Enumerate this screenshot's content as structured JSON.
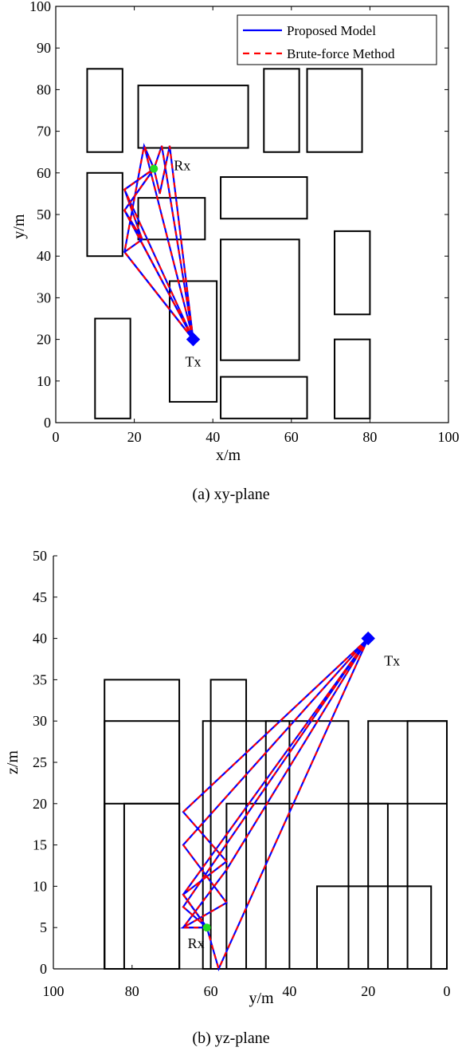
{
  "chart_data": [
    {
      "type": "line",
      "caption": "(a) xy-plane",
      "xlabel": "x/m",
      "ylabel": "y/m",
      "xlim": [
        0,
        100
      ],
      "ylim": [
        0,
        100
      ],
      "xticks": [
        0,
        20,
        40,
        60,
        80,
        100
      ],
      "yticks": [
        0,
        10,
        20,
        30,
        40,
        50,
        60,
        70,
        80,
        90,
        100
      ],
      "legend": {
        "position": "top-right",
        "entries": [
          {
            "label": "Proposed Model",
            "color": "#0000ff",
            "style": "solid"
          },
          {
            "label": "Brute-force Method",
            "color": "#ff0000",
            "style": "dashed"
          }
        ]
      },
      "buildings": [
        {
          "x": [
            8,
            17
          ],
          "y": [
            65,
            85
          ]
        },
        {
          "x": [
            21,
            49
          ],
          "y": [
            66,
            81
          ]
        },
        {
          "x": [
            53,
            62
          ],
          "y": [
            65,
            85
          ]
        },
        {
          "x": [
            64,
            78
          ],
          "y": [
            65,
            85
          ]
        },
        {
          "x": [
            8,
            17
          ],
          "y": [
            40,
            60
          ]
        },
        {
          "x": [
            21,
            38
          ],
          "y": [
            44,
            54
          ]
        },
        {
          "x": [
            42,
            64
          ],
          "y": [
            49,
            59
          ]
        },
        {
          "x": [
            42,
            62
          ],
          "y": [
            15,
            44
          ]
        },
        {
          "x": [
            71,
            80
          ],
          "y": [
            26,
            46
          ]
        },
        {
          "x": [
            29,
            41
          ],
          "y": [
            5,
            34
          ]
        },
        {
          "x": [
            10,
            19
          ],
          "y": [
            1,
            25
          ]
        },
        {
          "x": [
            71,
            80
          ],
          "y": [
            1,
            20
          ]
        },
        {
          "x": [
            42,
            64
          ],
          "y": [
            1,
            11
          ]
        }
      ],
      "tx": {
        "label": "Tx",
        "x": 35,
        "y": 20
      },
      "rx": {
        "label": "Rx",
        "x": 25,
        "y": 61
      },
      "paths": [
        [
          [
            35,
            20
          ],
          [
            22.5,
            66.5
          ],
          [
            25,
            61
          ]
        ],
        [
          [
            35,
            20
          ],
          [
            29,
            66.5
          ],
          [
            26.5,
            55
          ],
          [
            25,
            61
          ]
        ],
        [
          [
            35,
            20
          ],
          [
            27,
            66.5
          ],
          [
            25,
            61
          ]
        ],
        [
          [
            35,
            20
          ],
          [
            17.5,
            41
          ],
          [
            22.5,
            66.5
          ],
          [
            25,
            61
          ]
        ],
        [
          [
            35,
            20
          ],
          [
            17.5,
            51
          ],
          [
            22,
            44
          ],
          [
            17.5,
            56
          ],
          [
            25,
            61
          ]
        ],
        [
          [
            35,
            20
          ],
          [
            17.5,
            56
          ],
          [
            25,
            61
          ]
        ],
        [
          [
            35,
            20
          ],
          [
            17.5,
            41
          ],
          [
            22,
            44
          ],
          [
            17.5,
            51
          ],
          [
            25,
            61
          ]
        ],
        [
          [
            35,
            20
          ],
          [
            17.5,
            51
          ],
          [
            25,
            61
          ]
        ]
      ]
    },
    {
      "type": "line",
      "caption": "(b) yz-plane",
      "xlabel": "y/m",
      "ylabel": "z/m",
      "xlim": [
        100,
        0
      ],
      "ylim": [
        0,
        50
      ],
      "xticks": [
        100,
        80,
        60,
        40,
        20,
        0
      ],
      "yticks": [
        0,
        5,
        10,
        15,
        20,
        25,
        30,
        35,
        40,
        45,
        50
      ],
      "buildings": [
        {
          "y": [
            68,
            87
          ],
          "z": [
            0,
            35
          ]
        },
        {
          "y": [
            68,
            87
          ],
          "z": [
            0,
            30
          ]
        },
        {
          "y": [
            68,
            87
          ],
          "z": [
            0,
            20
          ]
        },
        {
          "y": [
            68,
            82
          ],
          "z": [
            0,
            20
          ]
        },
        {
          "y": [
            51,
            60
          ],
          "z": [
            0,
            35
          ]
        },
        {
          "y": [
            40,
            62
          ],
          "z": [
            0,
            30
          ]
        },
        {
          "y": [
            25,
            46
          ],
          "z": [
            0,
            30
          ]
        },
        {
          "y": [
            15,
            56
          ],
          "z": [
            0,
            20
          ]
        },
        {
          "y": [
            0,
            25
          ],
          "z": [
            0,
            20
          ]
        },
        {
          "y": [
            0,
            20
          ],
          "z": [
            0,
            30
          ]
        },
        {
          "y": [
            0,
            10
          ],
          "z": [
            0,
            30
          ]
        },
        {
          "y": [
            4,
            33
          ],
          "z": [
            0,
            10
          ]
        }
      ],
      "tx": {
        "label": "Tx",
        "y": 20,
        "z": 40
      },
      "rx": {
        "label": "Rx",
        "y": 61,
        "z": 5
      },
      "paths": [
        [
          [
            20,
            40
          ],
          [
            67,
            19
          ],
          [
            56,
            13
          ],
          [
            67,
            9
          ],
          [
            61,
            5
          ]
        ],
        [
          [
            20,
            40
          ],
          [
            67,
            15
          ],
          [
            56,
            8
          ],
          [
            67,
            5
          ],
          [
            61,
            5
          ]
        ],
        [
          [
            20,
            40
          ],
          [
            56,
            12
          ],
          [
            67,
            5
          ],
          [
            61,
            5
          ]
        ],
        [
          [
            20,
            40
          ],
          [
            67,
            9
          ],
          [
            61,
            5
          ]
        ],
        [
          [
            20,
            40
          ],
          [
            67,
            7.5
          ],
          [
            61,
            5
          ]
        ],
        [
          [
            20,
            40
          ],
          [
            58,
            0
          ],
          [
            61,
            5
          ]
        ]
      ]
    }
  ]
}
